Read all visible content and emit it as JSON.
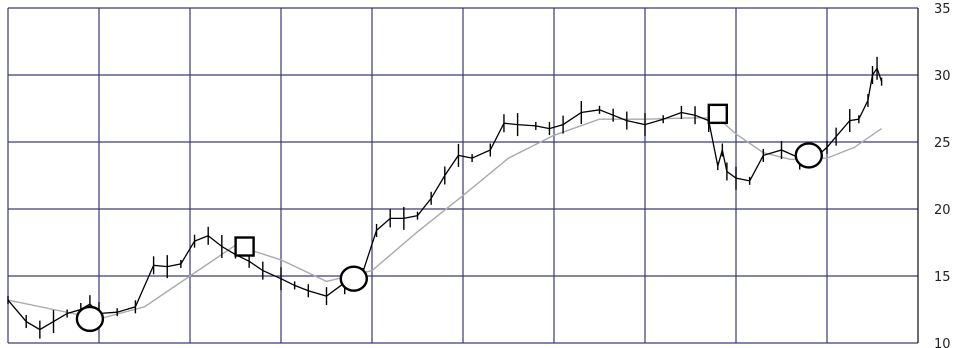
{
  "chart_data": {
    "type": "line",
    "title": "",
    "xlabel": "",
    "ylabel": "",
    "ylim": [
      10,
      35
    ],
    "yticks": [
      "10",
      "15",
      "20",
      "25",
      "30",
      "35"
    ],
    "grid": true,
    "x_divisions": 10,
    "series": [
      {
        "style": "price-bars",
        "color": "#000000",
        "x": [
          0,
          0.2,
          0.35,
          0.5,
          0.65,
          0.8,
          0.9,
          1.0,
          1.2,
          1.4,
          1.6,
          1.75,
          1.9,
          2.05,
          2.2,
          2.35,
          2.5,
          2.65,
          2.8,
          3.0,
          3.15,
          3.3,
          3.5,
          3.7,
          3.9,
          4.05,
          4.2,
          4.35,
          4.5,
          4.65,
          4.8,
          4.95,
          5.1,
          5.3,
          5.45,
          5.6,
          5.8,
          5.95,
          6.1,
          6.3,
          6.5,
          6.65,
          6.8,
          7.0,
          7.2,
          7.4,
          7.55,
          7.7,
          7.8,
          7.85,
          7.9,
          8.0,
          8.15,
          8.3,
          8.5,
          8.7,
          8.9,
          9.0,
          9.1,
          9.25,
          9.35,
          9.45,
          9.5,
          9.55,
          9.6
        ],
        "values": [
          13.2,
          11.6,
          11.0,
          11.6,
          12.2,
          12.5,
          12.9,
          12.2,
          12.3,
          12.7,
          15.8,
          15.7,
          15.9,
          17.6,
          18.0,
          17.2,
          16.6,
          16.1,
          15.4,
          14.8,
          14.3,
          13.9,
          13.5,
          14.5,
          15.3,
          18.4,
          19.3,
          19.3,
          19.5,
          20.8,
          22.5,
          24.0,
          23.8,
          24.4,
          26.4,
          26.3,
          26.2,
          26.0,
          26.3,
          27.2,
          27.4,
          27.0,
          26.6,
          26.3,
          26.7,
          27.2,
          27.0,
          26.6,
          23.2,
          24.4,
          22.8,
          22.3,
          22.1,
          24.0,
          24.4,
          23.8,
          24.0,
          24.6,
          25.4,
          26.6,
          26.7,
          28.1,
          30.0,
          30.5,
          29.5
        ]
      },
      {
        "style": "moving-average",
        "color": "#aaaaaa",
        "x": [
          0,
          0.5,
          1.0,
          1.5,
          2.0,
          2.5,
          3.0,
          3.5,
          4.0,
          4.5,
          5.0,
          5.5,
          6.0,
          6.5,
          7.0,
          7.5,
          7.8,
          8.0,
          8.3,
          8.6,
          9.0,
          9.3,
          9.6
        ],
        "values": [
          13.2,
          12.5,
          11.8,
          12.7,
          15.0,
          17.3,
          16.2,
          14.6,
          15.4,
          18.3,
          21.0,
          23.8,
          25.5,
          26.7,
          26.7,
          26.8,
          26.8,
          25.6,
          24.2,
          23.7,
          23.8,
          24.6,
          26.0
        ]
      }
    ],
    "markers": [
      {
        "shape": "circle",
        "x": 0.9,
        "y": 11.8
      },
      {
        "shape": "square",
        "x": 2.6,
        "y": 17.2
      },
      {
        "shape": "circle",
        "x": 3.8,
        "y": 14.8
      },
      {
        "shape": "square",
        "x": 7.8,
        "y": 27.1
      },
      {
        "shape": "circle",
        "x": 8.8,
        "y": 24.0
      }
    ]
  }
}
